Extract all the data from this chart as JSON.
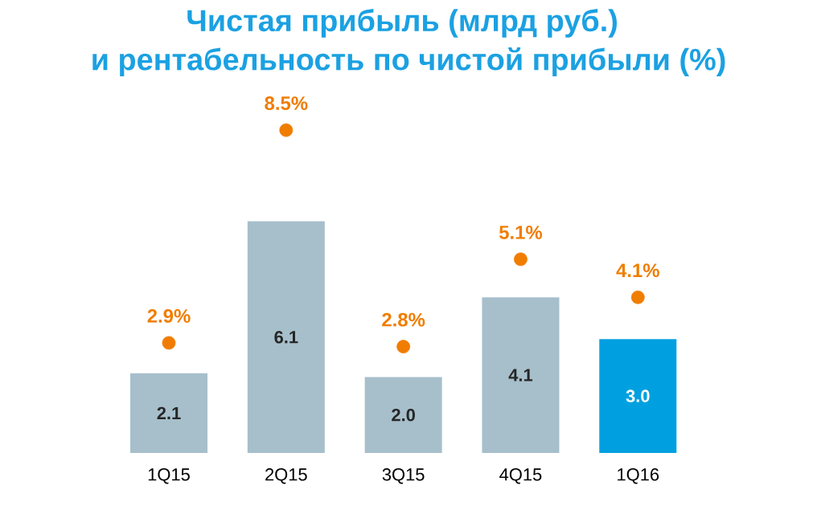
{
  "chart_data": {
    "type": "bar",
    "title": "Чистая прибыль (млрд руб.)",
    "subtitle": "и рентабельность по чистой прибыли (%)",
    "categories": [
      "1Q15",
      "2Q15",
      "3Q15",
      "4Q15",
      "1Q16"
    ],
    "series": [
      {
        "values": [
          2.1,
          6.1,
          2.0,
          4.1,
          3.0
        ],
        "colors": [
          "#a6bfcb",
          "#a6bfcb",
          "#a6bfcb",
          "#a6bfcb",
          "#00a0e0"
        ],
        "value_labels": [
          "2.1",
          "6.1",
          "2.0",
          "4.1",
          "3.0"
        ]
      },
      {
        "type": "scatter",
        "marker": "circle",
        "color": "#f07d00",
        "values": [
          2.9,
          8.5,
          2.8,
          5.1,
          4.1
        ],
        "value_labels": [
          "2.9%",
          "8.5%",
          "2.8%",
          "5.1%",
          "4.1%"
        ]
      }
    ],
    "tick_labels": "x"
  }
}
